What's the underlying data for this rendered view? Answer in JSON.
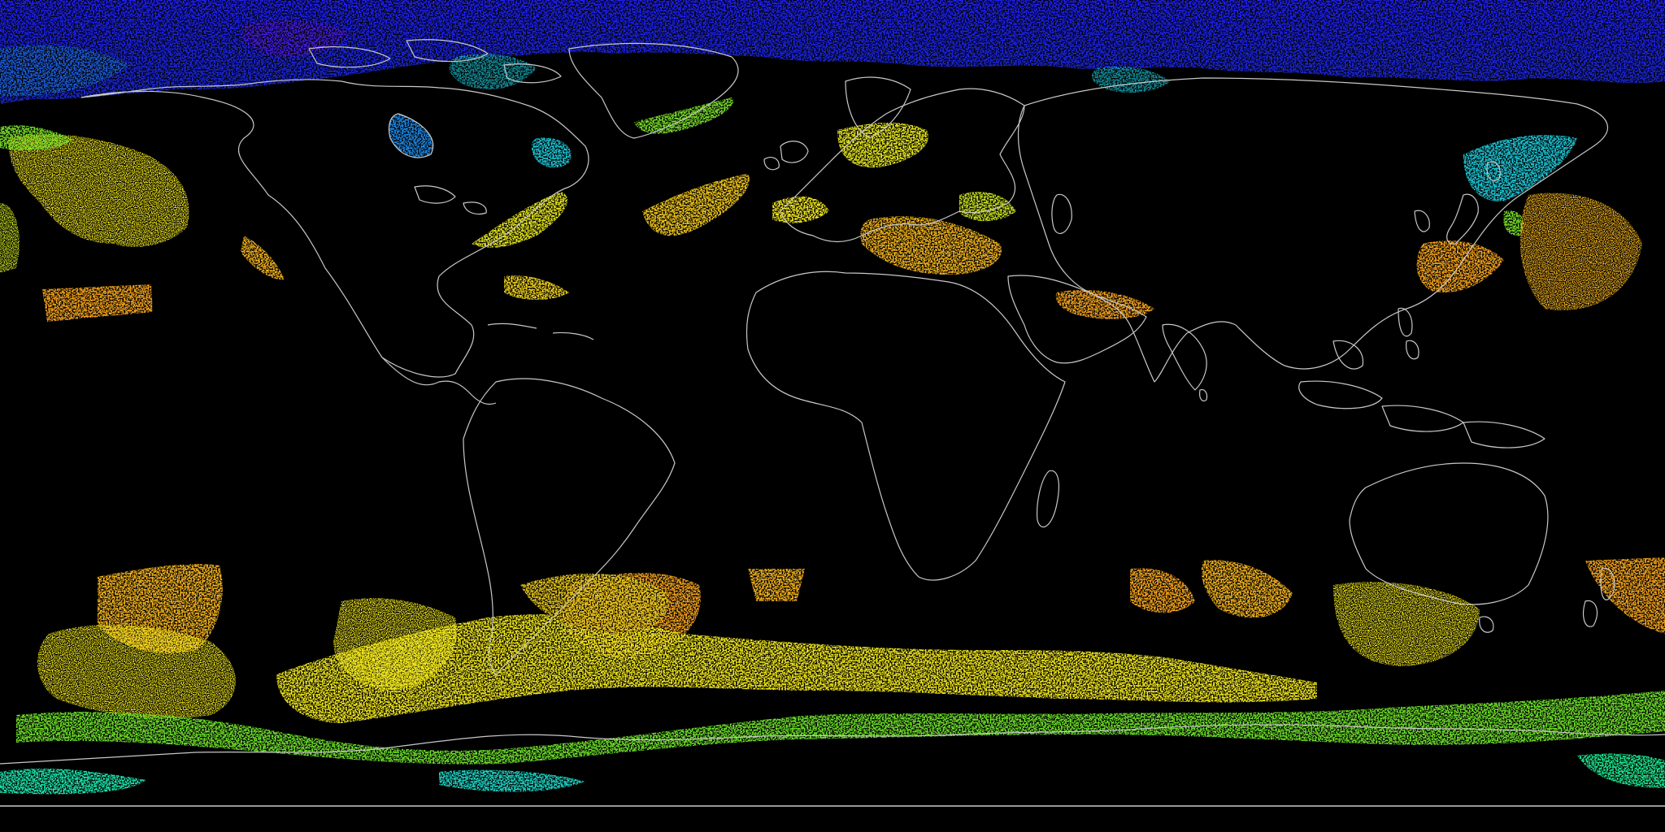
{
  "map": {
    "projection": "equirectangular",
    "background_color": "#000000",
    "coastline_color": "#c8c8c8",
    "colors": {
      "violet": "#4a1ee0",
      "blue": "#1e1ef5",
      "cyan": "#1ec8d8",
      "green": "#50e02a",
      "yellow": "#f2e81e",
      "orange": "#f5a41e",
      "deep_orange": "#f0821e"
    },
    "has_legend": false,
    "has_title": false,
    "layers": [
      "data-overlay",
      "coastlines",
      "bottom-border"
    ]
  }
}
